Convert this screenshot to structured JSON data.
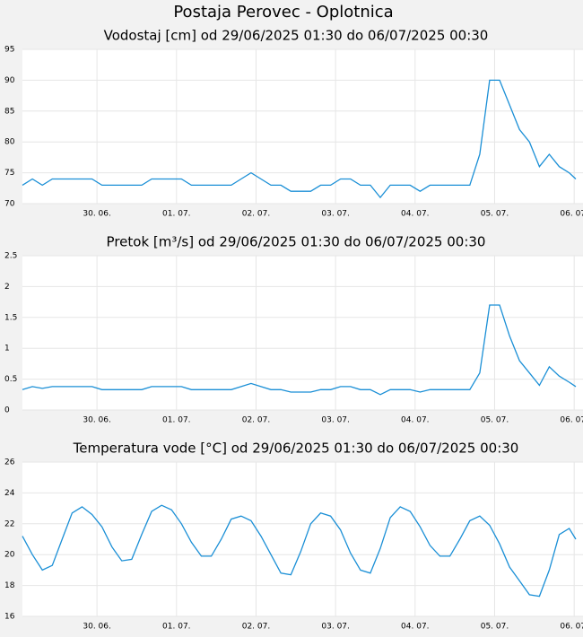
{
  "title": "Postaja Perovec - Oplotnica",
  "chart_data": [
    {
      "type": "line",
      "subtitle": "Vodostaj [cm] od 29/06/2025 01:30 do 06/07/2025 00:30",
      "x": [
        "2025-06-29T01:30",
        "2025-06-29T04:30",
        "2025-06-29T07:30",
        "2025-06-29T10:30",
        "2025-06-29T13:30",
        "2025-06-29T16:30",
        "2025-06-29T19:30",
        "2025-06-29T22:30",
        "2025-06-30T01:30",
        "2025-06-30T04:30",
        "2025-06-30T07:30",
        "2025-06-30T10:30",
        "2025-06-30T13:30",
        "2025-06-30T16:30",
        "2025-06-30T19:30",
        "2025-06-30T22:30",
        "2025-07-01T01:30",
        "2025-07-01T04:30",
        "2025-07-01T07:30",
        "2025-07-01T10:30",
        "2025-07-01T13:30",
        "2025-07-01T16:30",
        "2025-07-01T19:30",
        "2025-07-01T22:30",
        "2025-07-02T01:30",
        "2025-07-02T04:30",
        "2025-07-02T07:30",
        "2025-07-02T10:30",
        "2025-07-02T13:30",
        "2025-07-02T16:30",
        "2025-07-02T19:30",
        "2025-07-02T22:30",
        "2025-07-03T01:30",
        "2025-07-03T04:30",
        "2025-07-03T07:30",
        "2025-07-03T10:30",
        "2025-07-03T13:30",
        "2025-07-03T16:30",
        "2025-07-03T19:30",
        "2025-07-03T22:30",
        "2025-07-04T01:30",
        "2025-07-04T04:30",
        "2025-07-04T07:30",
        "2025-07-04T10:30",
        "2025-07-04T13:30",
        "2025-07-04T16:30",
        "2025-07-04T19:30",
        "2025-07-04T22:30",
        "2025-07-05T01:30",
        "2025-07-05T04:30",
        "2025-07-05T07:30",
        "2025-07-05T10:30",
        "2025-07-05T13:30",
        "2025-07-05T16:30",
        "2025-07-05T19:30",
        "2025-07-05T22:30",
        "2025-07-06T00:30"
      ],
      "values": [
        73,
        74,
        73,
        74,
        74,
        74,
        74,
        74,
        73,
        73,
        73,
        73,
        73,
        74,
        74,
        74,
        74,
        73,
        73,
        73,
        73,
        73,
        74,
        75,
        74,
        73,
        73,
        72,
        72,
        72,
        73,
        73,
        74,
        74,
        73,
        73,
        71,
        73,
        73,
        73,
        72,
        73,
        73,
        73,
        73,
        73,
        78,
        90,
        90,
        86,
        82,
        80,
        76,
        78,
        76,
        75,
        74
      ],
      "color": "#1a8fd6",
      "xlim": [
        "2025-06-29T01:30",
        "2025-07-06T00:30"
      ],
      "xticks": [
        {
          "value": "2025-06-30T00:00",
          "label": "30. 06."
        },
        {
          "value": "2025-07-01T00:00",
          "label": "01. 07."
        },
        {
          "value": "2025-07-02T00:00",
          "label": "02. 07."
        },
        {
          "value": "2025-07-03T00:00",
          "label": "03. 07."
        },
        {
          "value": "2025-07-04T00:00",
          "label": "04. 07."
        },
        {
          "value": "2025-07-05T00:00",
          "label": "05. 07."
        },
        {
          "value": "2025-07-06T00:00",
          "label": "06. 07."
        }
      ],
      "ylim": [
        70,
        95
      ],
      "yticks": [
        70,
        75,
        80,
        85,
        90,
        95
      ],
      "grid": true
    },
    {
      "type": "line",
      "subtitle": "Pretok [m³/s] od 29/06/2025 01:30 do 06/07/2025 00:30",
      "x": [
        "2025-06-29T01:30",
        "2025-06-29T04:30",
        "2025-06-29T07:30",
        "2025-06-29T10:30",
        "2025-06-29T13:30",
        "2025-06-29T16:30",
        "2025-06-29T19:30",
        "2025-06-29T22:30",
        "2025-06-30T01:30",
        "2025-06-30T04:30",
        "2025-06-30T07:30",
        "2025-06-30T10:30",
        "2025-06-30T13:30",
        "2025-06-30T16:30",
        "2025-06-30T19:30",
        "2025-06-30T22:30",
        "2025-07-01T01:30",
        "2025-07-01T04:30",
        "2025-07-01T07:30",
        "2025-07-01T10:30",
        "2025-07-01T13:30",
        "2025-07-01T16:30",
        "2025-07-01T19:30",
        "2025-07-01T22:30",
        "2025-07-02T01:30",
        "2025-07-02T04:30",
        "2025-07-02T07:30",
        "2025-07-02T10:30",
        "2025-07-02T13:30",
        "2025-07-02T16:30",
        "2025-07-02T19:30",
        "2025-07-02T22:30",
        "2025-07-03T01:30",
        "2025-07-03T04:30",
        "2025-07-03T07:30",
        "2025-07-03T10:30",
        "2025-07-03T13:30",
        "2025-07-03T16:30",
        "2025-07-03T19:30",
        "2025-07-03T22:30",
        "2025-07-04T01:30",
        "2025-07-04T04:30",
        "2025-07-04T07:30",
        "2025-07-04T10:30",
        "2025-07-04T13:30",
        "2025-07-04T16:30",
        "2025-07-04T19:30",
        "2025-07-04T22:30",
        "2025-07-05T01:30",
        "2025-07-05T04:30",
        "2025-07-05T07:30",
        "2025-07-05T10:30",
        "2025-07-05T13:30",
        "2025-07-05T16:30",
        "2025-07-05T19:30",
        "2025-07-05T22:30",
        "2025-07-06T00:30"
      ],
      "values": [
        0.33,
        0.38,
        0.35,
        0.38,
        0.38,
        0.38,
        0.38,
        0.38,
        0.33,
        0.33,
        0.33,
        0.33,
        0.33,
        0.38,
        0.38,
        0.38,
        0.38,
        0.33,
        0.33,
        0.33,
        0.33,
        0.33,
        0.38,
        0.43,
        0.38,
        0.33,
        0.33,
        0.29,
        0.29,
        0.29,
        0.33,
        0.33,
        0.38,
        0.38,
        0.33,
        0.33,
        0.25,
        0.33,
        0.33,
        0.33,
        0.29,
        0.33,
        0.33,
        0.33,
        0.33,
        0.33,
        0.6,
        1.7,
        1.7,
        1.2,
        0.8,
        0.6,
        0.4,
        0.7,
        0.55,
        0.45,
        0.38
      ],
      "color": "#1a8fd6",
      "xlim": [
        "2025-06-29T01:30",
        "2025-07-06T00:30"
      ],
      "xticks": [
        {
          "value": "2025-06-30T00:00",
          "label": "30. 06."
        },
        {
          "value": "2025-07-01T00:00",
          "label": "01. 07."
        },
        {
          "value": "2025-07-02T00:00",
          "label": "02. 07."
        },
        {
          "value": "2025-07-03T00:00",
          "label": "03. 07."
        },
        {
          "value": "2025-07-04T00:00",
          "label": "04. 07."
        },
        {
          "value": "2025-07-05T00:00",
          "label": "05. 07."
        },
        {
          "value": "2025-07-06T00:00",
          "label": "06. 07."
        }
      ],
      "ylim": [
        0,
        2.5
      ],
      "yticks": [
        0,
        0.5,
        1,
        1.5,
        2,
        2.5
      ],
      "grid": true
    },
    {
      "type": "line",
      "subtitle": "Temperatura vode [°C] od 29/06/2025 01:30 do 06/07/2025 00:30",
      "x": [
        "2025-06-29T01:30",
        "2025-06-29T04:30",
        "2025-06-29T07:30",
        "2025-06-29T10:30",
        "2025-06-29T13:30",
        "2025-06-29T16:30",
        "2025-06-29T19:30",
        "2025-06-29T22:30",
        "2025-06-30T01:30",
        "2025-06-30T04:30",
        "2025-06-30T07:30",
        "2025-06-30T10:30",
        "2025-06-30T13:30",
        "2025-06-30T16:30",
        "2025-06-30T19:30",
        "2025-06-30T22:30",
        "2025-07-01T01:30",
        "2025-07-01T04:30",
        "2025-07-01T07:30",
        "2025-07-01T10:30",
        "2025-07-01T13:30",
        "2025-07-01T16:30",
        "2025-07-01T19:30",
        "2025-07-01T22:30",
        "2025-07-02T01:30",
        "2025-07-02T04:30",
        "2025-07-02T07:30",
        "2025-07-02T10:30",
        "2025-07-02T13:30",
        "2025-07-02T16:30",
        "2025-07-02T19:30",
        "2025-07-02T22:30",
        "2025-07-03T01:30",
        "2025-07-03T04:30",
        "2025-07-03T07:30",
        "2025-07-03T10:30",
        "2025-07-03T13:30",
        "2025-07-03T16:30",
        "2025-07-03T19:30",
        "2025-07-03T22:30",
        "2025-07-04T01:30",
        "2025-07-04T04:30",
        "2025-07-04T07:30",
        "2025-07-04T10:30",
        "2025-07-04T13:30",
        "2025-07-04T16:30",
        "2025-07-04T19:30",
        "2025-07-04T22:30",
        "2025-07-05T01:30",
        "2025-07-05T04:30",
        "2025-07-05T07:30",
        "2025-07-05T10:30",
        "2025-07-05T13:30",
        "2025-07-05T16:30",
        "2025-07-05T19:30",
        "2025-07-05T22:30",
        "2025-07-06T00:30"
      ],
      "values": [
        21.2,
        20.0,
        19.0,
        19.3,
        21.0,
        22.7,
        23.1,
        22.6,
        21.8,
        20.5,
        19.6,
        19.7,
        21.3,
        22.8,
        23.2,
        22.9,
        22.0,
        20.8,
        19.9,
        19.9,
        21.0,
        22.3,
        22.5,
        22.2,
        21.2,
        20.0,
        18.8,
        18.7,
        20.2,
        22.0,
        22.7,
        22.5,
        21.6,
        20.1,
        19.0,
        18.8,
        20.4,
        22.4,
        23.1,
        22.8,
        21.8,
        20.6,
        19.9,
        19.9,
        21.0,
        22.2,
        22.5,
        21.9,
        20.7,
        19.2,
        18.3,
        17.4,
        17.3,
        19.0,
        21.3,
        21.7,
        21.0
      ],
      "color": "#1a8fd6",
      "xlim": [
        "2025-06-29T01:30",
        "2025-07-06T00:30"
      ],
      "xticks": [
        {
          "value": "2025-06-30T00:00",
          "label": "30. 06."
        },
        {
          "value": "2025-07-01T00:00",
          "label": "01. 07."
        },
        {
          "value": "2025-07-02T00:00",
          "label": "02. 07."
        },
        {
          "value": "2025-07-03T00:00",
          "label": "03. 07."
        },
        {
          "value": "2025-07-04T00:00",
          "label": "04. 07."
        },
        {
          "value": "2025-07-05T00:00",
          "label": "05. 07."
        },
        {
          "value": "2025-07-06T00:00",
          "label": "06. 07."
        }
      ],
      "ylim": [
        16,
        26
      ],
      "yticks": [
        16,
        18,
        20,
        22,
        24,
        26
      ],
      "grid": true
    }
  ]
}
